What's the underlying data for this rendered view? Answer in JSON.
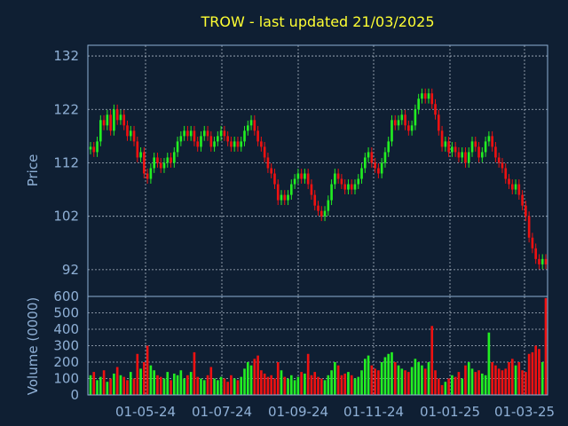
{
  "colors": {
    "background": "#0f1f33",
    "title": "#ffff33",
    "axis": "#8fb0d6",
    "grid": "#c8d2de",
    "up": "#22ee22",
    "down": "#ee1111"
  },
  "chart_data": [
    {
      "type": "candlestick",
      "title": "TROW - last updated 21/03/2025",
      "ylabel": "Price",
      "ylim": [
        87,
        134
      ],
      "yticks": [
        92,
        102,
        112,
        122,
        132
      ],
      "grid": true,
      "x_tick_labels": [
        "01-05-24",
        "01-07-24",
        "01-09-24",
        "01-11-24",
        "01-01-25",
        "01-03-25"
      ],
      "series": [
        {
          "close_values": [
            115,
            114,
            116,
            120,
            119,
            121,
            118,
            122,
            120,
            121,
            119,
            117,
            118,
            116,
            113,
            114,
            110,
            109,
            111,
            113,
            112,
            111,
            112,
            113,
            112,
            114,
            116,
            117,
            118,
            117,
            118,
            116,
            115,
            117,
            118,
            117,
            115,
            116,
            117,
            118,
            117,
            116,
            115,
            116,
            115,
            116,
            118,
            119,
            120,
            118,
            116,
            115,
            113,
            111,
            110,
            108,
            105,
            106,
            105,
            106,
            108,
            109,
            110,
            109,
            110,
            108,
            106,
            104,
            103,
            102,
            103,
            105,
            108,
            110,
            109,
            108,
            107,
            108,
            107,
            108,
            109,
            111,
            113,
            114,
            112,
            111,
            110,
            112,
            114,
            116,
            120,
            119,
            120,
            121,
            119,
            118,
            119,
            122,
            124,
            125,
            124,
            125,
            123,
            121,
            118,
            115,
            116,
            114,
            115,
            114,
            113,
            114,
            112,
            114,
            116,
            115,
            113,
            114,
            116,
            117,
            115,
            113,
            112,
            111,
            109,
            108,
            107,
            108,
            106,
            104,
            102,
            98,
            96,
            94,
            93,
            94,
            93
          ]
        }
      ]
    },
    {
      "type": "bar",
      "ylabel": "Volume (0000)",
      "ylim": [
        0,
        600
      ],
      "yticks": [
        0,
        100,
        200,
        300,
        400,
        500,
        600
      ],
      "grid": true,
      "series": [
        {
          "values": [
            120,
            140,
            90,
            110,
            150,
            80,
            100,
            130,
            170,
            120,
            110,
            90,
            140,
            100,
            250,
            160,
            200,
            300,
            180,
            150,
            120,
            110,
            100,
            140,
            90,
            130,
            120,
            150,
            100,
            120,
            140,
            260,
            110,
            100,
            90,
            120,
            170,
            100,
            90,
            110,
            100,
            80,
            120,
            100,
            90,
            110,
            160,
            200,
            180,
            220,
            240,
            150,
            130,
            110,
            120,
            100,
            200,
            150,
            110,
            100,
            120,
            90,
            110,
            140,
            130,
            250,
            120,
            140,
            110,
            100,
            90,
            120,
            150,
            200,
            180,
            120,
            130,
            140,
            120,
            100,
            110,
            150,
            220,
            240,
            180,
            160,
            150,
            200,
            230,
            250,
            260,
            200,
            180,
            160,
            150,
            140,
            170,
            220,
            200,
            180,
            160,
            200,
            420,
            150,
            100,
            60,
            80,
            100,
            120,
            110,
            140,
            100,
            180,
            200,
            160,
            140,
            150,
            130,
            120,
            380,
            200,
            180,
            160,
            150,
            160,
            200,
            220,
            180,
            200,
            150,
            140,
            250,
            260,
            300,
            280,
            200,
            590
          ]
        }
      ]
    }
  ]
}
